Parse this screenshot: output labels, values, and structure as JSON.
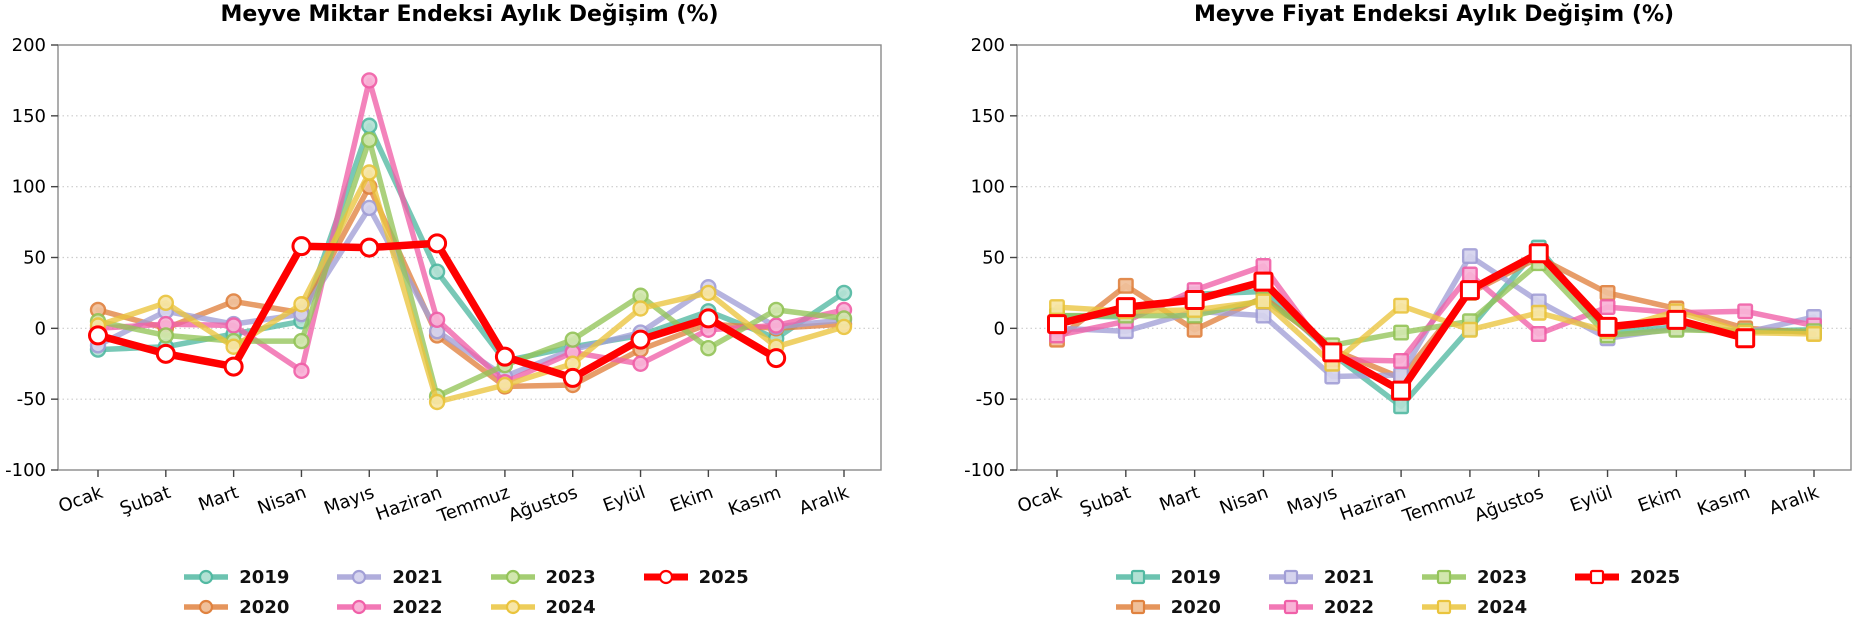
{
  "chart_data": [
    {
      "type": "line",
      "title": "Meyve Miktar Endeksi Aylık Değişim (%)",
      "categories": [
        "Ocak",
        "Şubat",
        "Mart",
        "Nisan",
        "Mayıs",
        "Haziran",
        "Temmuz",
        "Ağustos",
        "Eylül",
        "Ekim",
        "Kasım",
        "Aralık"
      ],
      "ylim": [
        -100,
        200
      ],
      "yticks": [
        200,
        150,
        100,
        50,
        0,
        -50,
        -100
      ],
      "grid": "horizontal-dotted",
      "legend_position": "bottom",
      "marker": "circle",
      "series": [
        {
          "name": "2019",
          "color": "#52b9a2",
          "marker_fill": "#b2e1d4",
          "values": [
            -15,
            -13,
            -4,
            5,
            143,
            40,
            -23,
            -13,
            -5,
            12,
            -7,
            25
          ]
        },
        {
          "name": "2020",
          "color": "#e0823f",
          "marker_fill": "#f0c09a",
          "values": [
            13,
            0,
            19,
            11,
            100,
            -5,
            -41,
            -40,
            -15,
            3,
            0,
            3
          ]
        },
        {
          "name": "2021",
          "color": "#a29fd6",
          "marker_fill": "#d6d4ee",
          "values": [
            -12,
            12,
            3,
            10,
            85,
            -2,
            -34,
            -15,
            -3,
            29,
            1,
            6
          ]
        },
        {
          "name": "2022",
          "color": "#f060a8",
          "marker_fill": "#f9b3d7",
          "values": [
            0,
            3,
            2,
            -30,
            175,
            6,
            -38,
            -17,
            -25,
            -1,
            2,
            13
          ]
        },
        {
          "name": "2023",
          "color": "#94c459",
          "marker_fill": "#d2e7ae",
          "values": [
            5,
            -5,
            -9,
            -9,
            133,
            -48,
            -26,
            -8,
            23,
            -14,
            13,
            7
          ]
        },
        {
          "name": "2024",
          "color": "#eac43d",
          "marker_fill": "#f7e6a6",
          "values": [
            2,
            18,
            -13,
            17,
            110,
            -52,
            -40,
            -25,
            14,
            25,
            -13,
            1
          ]
        },
        {
          "name": "2025",
          "color": "#ff0000",
          "marker_fill": "#ffffff",
          "values": [
            -5,
            -18,
            -27,
            58,
            57,
            60,
            -20,
            -35,
            -8,
            7,
            -21,
            null
          ]
        }
      ]
    },
    {
      "type": "line",
      "title": "Meyve Fiyat Endeksi Aylık Değişim (%)",
      "categories": [
        "Ocak",
        "Şubat",
        "Mart",
        "Nisan",
        "Mayıs",
        "Haziran",
        "Temmuz",
        "Ağustos",
        "Eylül",
        "Ekim",
        "Kasım",
        "Aralık"
      ],
      "ylim": [
        -100,
        200
      ],
      "yticks": [
        200,
        150,
        100,
        50,
        0,
        -50,
        -100
      ],
      "grid": "horizontal-dotted",
      "legend_position": "bottom",
      "marker": "square",
      "series": [
        {
          "name": "2019",
          "color": "#52b9a2",
          "marker_fill": "#b2e1d4",
          "values": [
            9,
            8,
            24,
            26,
            -18,
            -55,
            0,
            57,
            -3,
            1,
            -2,
            -1
          ]
        },
        {
          "name": "2020",
          "color": "#e0823f",
          "marker_fill": "#f0c09a",
          "values": [
            -8,
            30,
            -1,
            22,
            -15,
            -35,
            25,
            50,
            25,
            14,
            0,
            -3
          ]
        },
        {
          "name": "2021",
          "color": "#a29fd6",
          "marker_fill": "#d6d4ee",
          "values": [
            0,
            -2,
            12,
            9,
            -34,
            -33,
            51,
            19,
            -7,
            0,
            -3,
            8
          ]
        },
        {
          "name": "2022",
          "color": "#f060a8",
          "marker_fill": "#f9b3d7",
          "values": [
            -5,
            5,
            27,
            44,
            -22,
            -23,
            38,
            -4,
            15,
            11,
            12,
            2
          ]
        },
        {
          "name": "2023",
          "color": "#94c459",
          "marker_fill": "#d2e7ae",
          "values": [
            9,
            9,
            9,
            20,
            -12,
            -3,
            5,
            46,
            -5,
            -1,
            -2,
            -2
          ]
        },
        {
          "name": "2024",
          "color": "#eac43d",
          "marker_fill": "#f7e6a6",
          "values": [
            15,
            12,
            13,
            19,
            -25,
            16,
            -1,
            11,
            -2,
            12,
            -3,
            -4
          ]
        },
        {
          "name": "2025",
          "color": "#ff0000",
          "marker_fill": "#ffffff",
          "values": [
            3,
            15,
            20,
            33,
            -17,
            -44,
            27,
            53,
            1,
            6,
            -7,
            null
          ]
        }
      ]
    }
  ]
}
